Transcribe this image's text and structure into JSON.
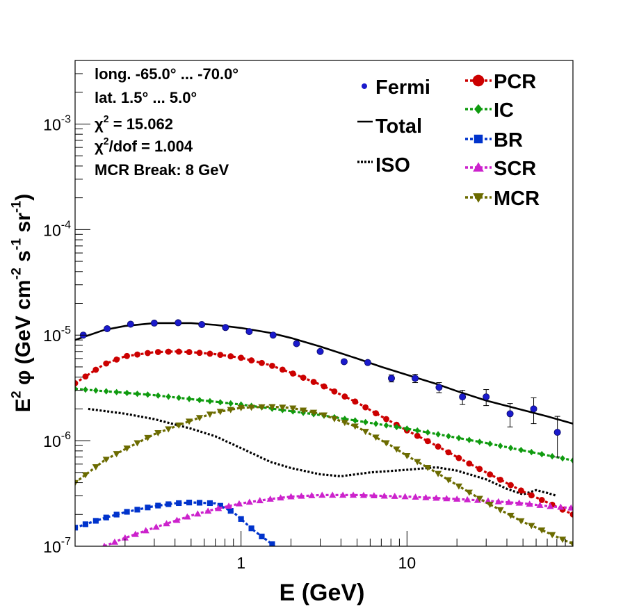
{
  "chart_data": {
    "type": "line",
    "xscale": "log",
    "yscale": "log",
    "xlim": [
      0.1,
      100
    ],
    "ylim": [
      1e-07,
      0.004
    ],
    "xlabel": "E (GeV)",
    "ylabel": {
      "parts": [
        {
          "t": "E",
          "s": "base"
        },
        {
          "t": "2",
          "s": "sup"
        },
        {
          "t": "  φ (GeV cm",
          "s": "base"
        },
        {
          "t": "-2",
          "s": "sup"
        },
        {
          "t": " s",
          "s": "base"
        },
        {
          "t": "-1",
          "s": "sup"
        },
        {
          "t": " sr",
          "s": "base"
        },
        {
          "t": "-1",
          "s": "sup"
        },
        {
          "t": ")",
          "s": "base"
        }
      ]
    },
    "x_tick_labels": [
      {
        "value": 1,
        "label": "1"
      },
      {
        "value": 10,
        "label": "10"
      }
    ],
    "y_tick_labels": [
      {
        "value": 1e-07,
        "base": "10",
        "exp": "-7"
      },
      {
        "value": 1e-06,
        "base": "10",
        "exp": "-6"
      },
      {
        "value": 1e-05,
        "base": "10",
        "exp": "-5"
      },
      {
        "value": 0.0001,
        "base": "10",
        "exp": "-4"
      },
      {
        "value": 0.001,
        "base": "10",
        "exp": "-3"
      }
    ],
    "annotations": [
      {
        "parts": [
          {
            "t": "long. -65.0° ... -70.0°",
            "s": "base"
          }
        ]
      },
      {
        "parts": [
          {
            "t": "lat. 1.5° ... 5.0°",
            "s": "base"
          }
        ]
      },
      {
        "parts": [
          {
            "t": "χ",
            "s": "base"
          },
          {
            "t": "2",
            "s": "sup"
          },
          {
            "t": " = 15.062",
            "s": "base"
          }
        ]
      },
      {
        "parts": [
          {
            "t": "χ",
            "s": "base"
          },
          {
            "t": "2",
            "s": "sup"
          },
          {
            "t": "/dof = 1.004",
            "s": "base"
          }
        ]
      },
      {
        "parts": [
          {
            "t": "MCR Break:  8 GeV",
            "s": "base"
          }
        ]
      }
    ],
    "legend_left": [
      {
        "label": "Fermi",
        "key": "fermi"
      },
      {
        "label": "Total",
        "key": "total"
      },
      {
        "label": "ISO",
        "key": "iso"
      }
    ],
    "legend_right": [
      {
        "label": "PCR",
        "key": "pcr"
      },
      {
        "label": "IC",
        "key": "ic"
      },
      {
        "label": "BR",
        "key": "br"
      },
      {
        "label": "SCR",
        "key": "scr"
      },
      {
        "label": "MCR",
        "key": "mcr"
      }
    ],
    "fermi": {
      "name": "Fermi",
      "color": "#1a1acc",
      "x": [
        0.112,
        0.156,
        0.216,
        0.3,
        0.418,
        0.58,
        0.806,
        1.12,
        1.56,
        2.16,
        3.0,
        4.18,
        5.8,
        8.06,
        11.2,
        15.6,
        21.6,
        30.0,
        41.8,
        58.0,
        80.6
      ],
      "y": [
        1e-05,
        1.15e-05,
        1.27e-05,
        1.3e-05,
        1.31e-05,
        1.26e-05,
        1.18e-05,
        1.08e-05,
        1e-05,
        8.3e-06,
        7e-06,
        5.6e-06,
        5.5e-06,
        3.9e-06,
        3.9e-06,
        3.2e-06,
        2.6e-06,
        2.6e-06,
        1.8e-06,
        2e-06,
        1.2e-06
      ],
      "err": [
        0,
        0,
        0,
        0,
        0,
        0,
        0,
        0,
        0,
        0,
        0,
        0,
        0,
        3e-07,
        3.5e-07,
        3.5e-07,
        4e-07,
        4.5e-07,
        4.5e-07,
        5.5e-07,
        5e-07
      ]
    },
    "series": [
      {
        "name": "Total",
        "key": "total",
        "color": "#000000",
        "style": "solid",
        "marker": "none",
        "x": [
          0.1,
          0.15,
          0.2,
          0.3,
          0.5,
          0.7,
          1,
          1.5,
          2,
          3,
          5,
          7,
          10,
          15,
          20,
          30,
          50,
          70,
          100
        ],
        "y": [
          9e-06,
          1.12e-05,
          1.22e-05,
          1.3e-05,
          1.3e-05,
          1.25e-05,
          1.17e-05,
          1.05e-05,
          9.4e-06,
          7.8e-06,
          6e-06,
          5e-06,
          4.2e-06,
          3.45e-06,
          2.95e-06,
          2.4e-06,
          1.95e-06,
          1.7e-06,
          1.45e-06
        ]
      },
      {
        "name": "ISO",
        "key": "iso",
        "color": "#000000",
        "style": "dotted",
        "marker": "none",
        "x": [
          0.12,
          0.2,
          0.3,
          0.5,
          0.7,
          1,
          1.5,
          2,
          3,
          4,
          6,
          10,
          15,
          20,
          30,
          40,
          50,
          60,
          70,
          80
        ],
        "y": [
          2e-06,
          1.8e-06,
          1.6e-06,
          1.3e-06,
          1.1e-06,
          8.5e-07,
          6.3e-07,
          5.5e-07,
          4.8e-07,
          4.6e-07,
          5e-07,
          5.3e-07,
          5.6e-07,
          5.2e-07,
          4.3e-07,
          3.5e-07,
          3.1e-07,
          3.4e-07,
          3.2e-07,
          3e-07
        ]
      },
      {
        "name": "PCR",
        "key": "pcr",
        "color": "#cc0000",
        "style": "dashed",
        "marker": "circle",
        "x": [
          0.1,
          0.15,
          0.2,
          0.3,
          0.4,
          0.5,
          0.7,
          1,
          1.5,
          2,
          3,
          5,
          7,
          10,
          15,
          20,
          30,
          50,
          70,
          100
        ],
        "y": [
          3.5e-06,
          5.3e-06,
          6.3e-06,
          6.9e-06,
          7e-06,
          6.9e-06,
          6.6e-06,
          6.1e-06,
          5.2e-06,
          4.4e-06,
          3.4e-06,
          2.3e-06,
          1.7e-06,
          1.25e-06,
          9e-07,
          7e-07,
          5e-07,
          3.3e-07,
          2.6e-07,
          2e-07
        ]
      },
      {
        "name": "IC",
        "key": "ic",
        "color": "#0f9b0f",
        "style": "dashed",
        "marker": "diamond",
        "x": [
          0.1,
          0.3,
          1,
          3,
          10,
          30,
          100
        ],
        "y": [
          3.1e-06,
          2.7e-06,
          2.2e-06,
          1.75e-06,
          1.3e-06,
          9.5e-07,
          6.5e-07
        ]
      },
      {
        "name": "BR",
        "key": "br",
        "color": "#0033cc",
        "style": "dashed",
        "marker": "square",
        "x": [
          0.1,
          0.15,
          0.2,
          0.3,
          0.4,
          0.5,
          0.7,
          0.9,
          1.2,
          1.6
        ],
        "y": [
          1.5e-07,
          1.85e-07,
          2.1e-07,
          2.4e-07,
          2.55e-07,
          2.6e-07,
          2.55e-07,
          2.1e-07,
          1.4e-07,
          1e-07
        ]
      },
      {
        "name": "SCR",
        "key": "scr",
        "color": "#cc22cc",
        "style": "dashed",
        "marker": "triangle-up",
        "x": [
          0.15,
          0.2,
          0.3,
          0.5,
          0.7,
          1,
          1.5,
          2,
          3,
          5,
          7,
          10,
          20,
          30,
          50,
          70,
          100
        ],
        "y": [
          1e-07,
          1.2e-07,
          1.5e-07,
          1.95e-07,
          2.25e-07,
          2.55e-07,
          2.8e-07,
          2.95e-07,
          3.05e-07,
          3.05e-07,
          3e-07,
          2.95e-07,
          2.8e-07,
          2.7e-07,
          2.55e-07,
          2.4e-07,
          2.3e-07
        ]
      },
      {
        "name": "MCR",
        "key": "mcr",
        "color": "#6b6b00",
        "style": "dashed",
        "marker": "triangle-down",
        "x": [
          0.1,
          0.15,
          0.2,
          0.3,
          0.5,
          0.7,
          1,
          1.5,
          2,
          3,
          5,
          8,
          10,
          15,
          20,
          30,
          50,
          70,
          100
        ],
        "y": [
          4e-07,
          6.5e-07,
          8.3e-07,
          1.15e-06,
          1.55e-06,
          1.85e-06,
          2.05e-06,
          2.1e-06,
          2.05e-06,
          1.8e-06,
          1.35e-06,
          9e-07,
          7.2e-07,
          5e-07,
          3.8e-07,
          2.6e-07,
          1.7e-07,
          1.35e-07,
          1.05e-07
        ]
      }
    ]
  }
}
